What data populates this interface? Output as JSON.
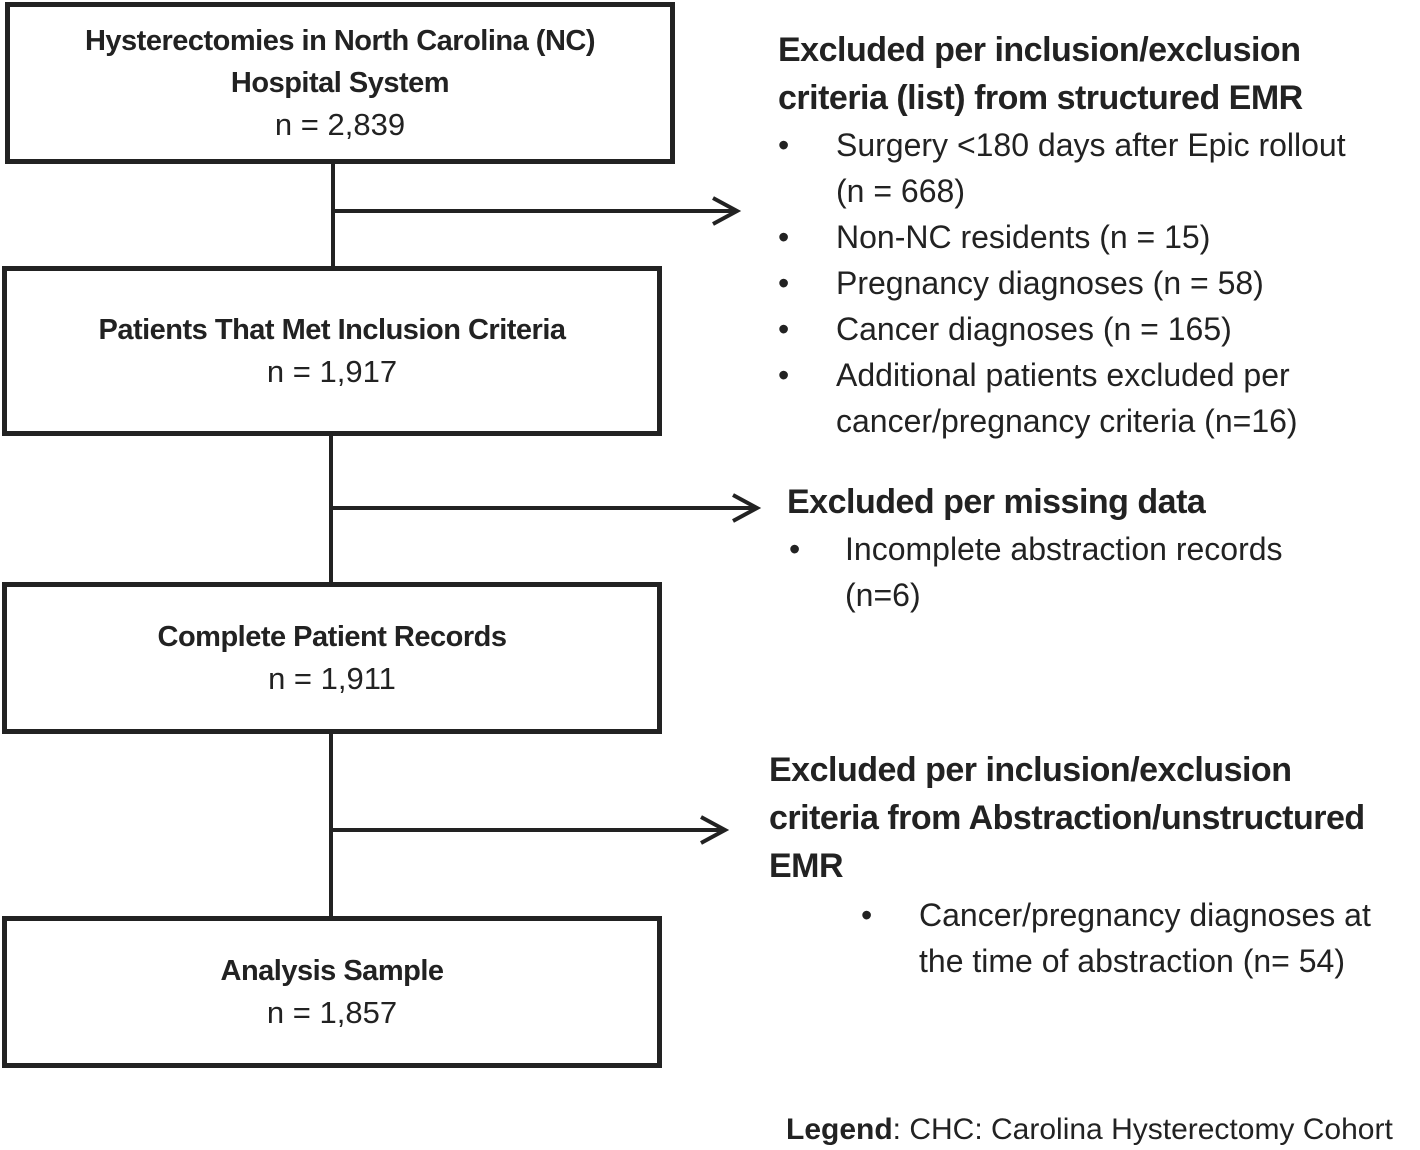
{
  "boxes": [
    {
      "title_lines": [
        "Hysterectomies in North Carolina (NC)",
        "Hospital System"
      ],
      "count": "n = 2,839"
    },
    {
      "title_lines": [
        "Patients That Met Inclusion Criteria"
      ],
      "count": "n = 1,917"
    },
    {
      "title_lines": [
        "Complete Patient Records"
      ],
      "count": "n = 1,911"
    },
    {
      "title_lines": [
        "Analysis Sample"
      ],
      "count": "n = 1,857"
    }
  ],
  "exclusions": [
    {
      "heading_lines": [
        "Excluded per inclusion/exclusion",
        "criteria (list) from structured EMR"
      ],
      "items": [
        {
          "lines": [
            "Surgery <180 days after Epic rollout",
            "(n = 668)"
          ]
        },
        {
          "lines": [
            "Non-NC residents (n = 15)"
          ]
        },
        {
          "lines": [
            "Pregnancy diagnoses (n = 58)"
          ]
        },
        {
          "lines": [
            "Cancer diagnoses (n = 165)"
          ]
        },
        {
          "lines": [
            "Additional patients excluded per",
            "cancer/pregnancy criteria (n=16)"
          ]
        }
      ]
    },
    {
      "heading_lines": [
        "Excluded per missing data"
      ],
      "items": [
        {
          "lines": [
            "Incomplete abstraction records",
            "(n=6)"
          ]
        }
      ]
    },
    {
      "heading_lines": [
        "Excluded per inclusion/exclusion",
        "criteria from Abstraction/unstructured",
        "EMR"
      ],
      "items": [
        {
          "lines": [
            "Cancer/pregnancy diagnoses at",
            "the time of abstraction (n= 54)"
          ]
        }
      ]
    }
  ],
  "bullet_char": "•",
  "legend": {
    "label": "Legend",
    "text": ": CHC: Carolina Hysterectomy Cohort"
  }
}
